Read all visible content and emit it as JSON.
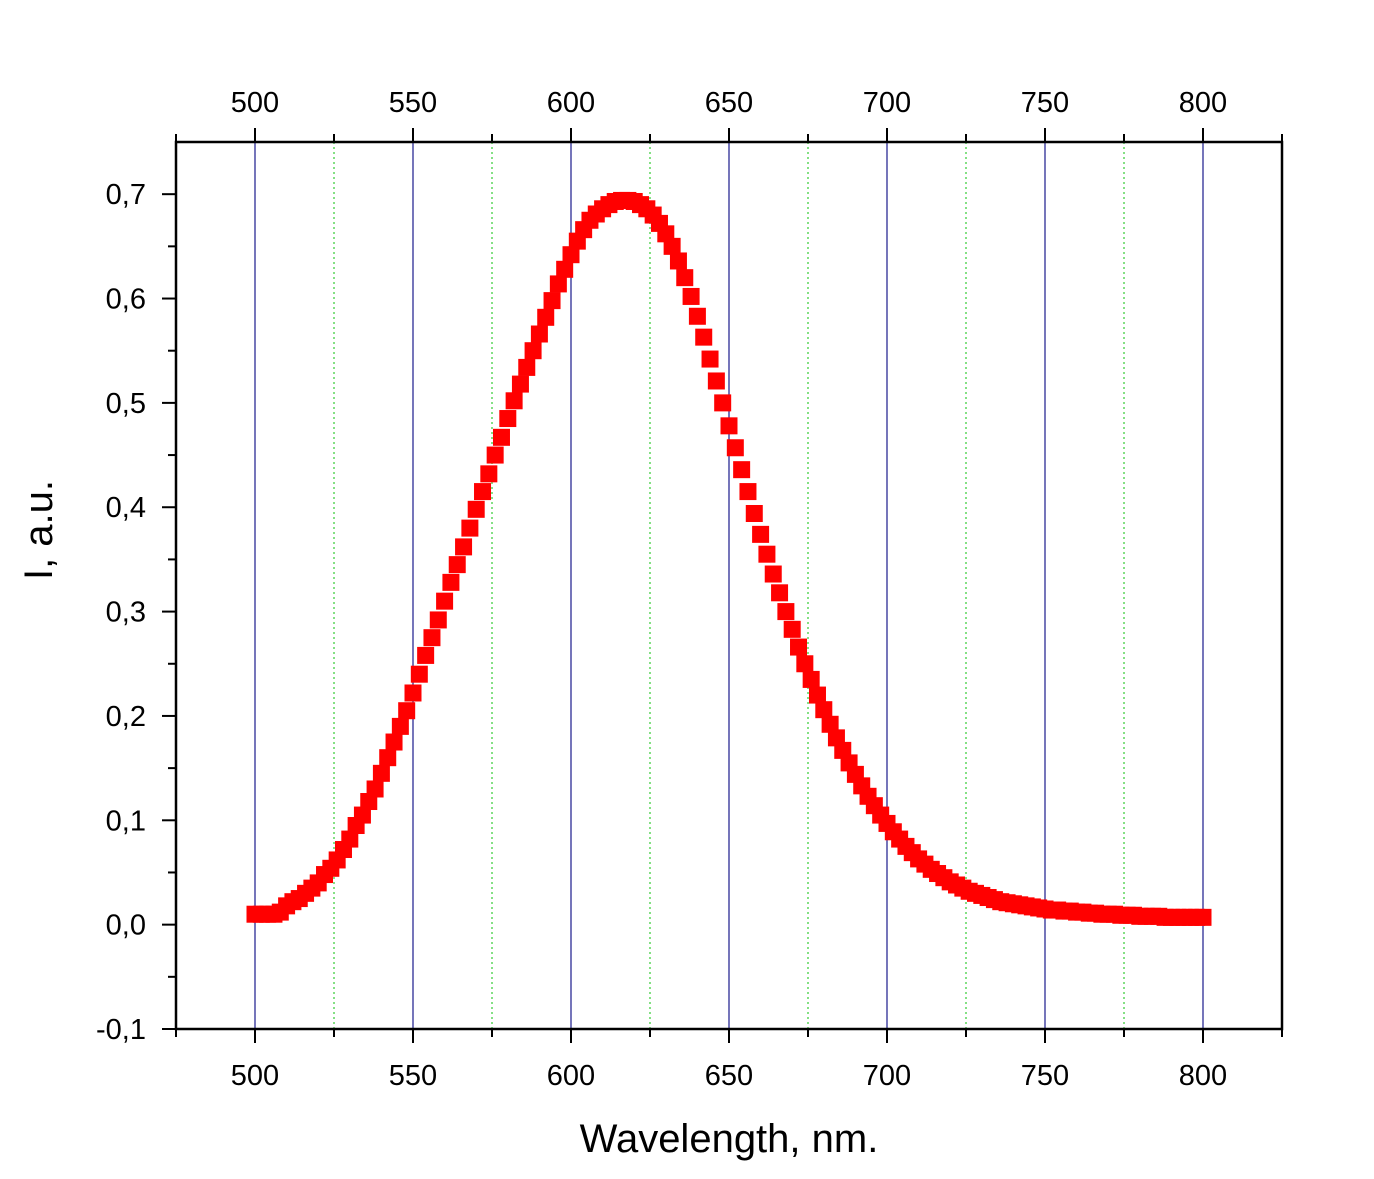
{
  "chart_data": {
    "type": "scatter",
    "title": "",
    "xlabel": "Wavelength, nm.",
    "ylabel": "I, a.u.",
    "xlim": [
      475,
      825
    ],
    "ylim": [
      -0.1,
      0.75
    ],
    "x_ticks": [
      500,
      550,
      600,
      650,
      700,
      750,
      800
    ],
    "x_tick_labels": [
      "500",
      "550",
      "600",
      "650",
      "700",
      "750",
      "800"
    ],
    "y_ticks": [
      -0.1,
      0.0,
      0.1,
      0.2,
      0.3,
      0.4,
      0.5,
      0.6,
      0.7
    ],
    "y_tick_labels": [
      "-0,1",
      "0,0",
      "0,1",
      "0,2",
      "0,3",
      "0,4",
      "0,5",
      "0,6",
      "0,7"
    ],
    "top_axis_mirrors_bottom": true,
    "grid": {
      "major_x": true,
      "minor_x": true,
      "major_y": false
    },
    "colors": {
      "marker": "#ff0000",
      "major_grid": "#1a1a8c",
      "minor_grid": "#33cc33",
      "axis": "#000000"
    },
    "marker": "square",
    "series": [
      {
        "x": [
          500,
          502,
          504,
          506,
          508,
          510,
          512,
          514,
          516,
          518,
          520,
          522,
          524,
          526,
          528,
          530,
          532,
          534,
          536,
          538,
          540,
          542,
          544,
          546,
          548,
          550,
          552,
          554,
          556,
          558,
          560,
          562,
          564,
          566,
          568,
          570,
          572,
          574,
          576,
          578,
          580,
          582,
          584,
          586,
          588,
          590,
          592,
          594,
          596,
          598,
          600,
          602,
          604,
          606,
          608,
          610,
          612,
          614,
          616,
          618,
          620,
          622,
          624,
          626,
          628,
          630,
          632,
          634,
          636,
          638,
          640,
          642,
          644,
          646,
          648,
          650,
          652,
          654,
          656,
          658,
          660,
          662,
          664,
          666,
          668,
          670,
          672,
          674,
          676,
          678,
          680,
          682,
          684,
          686,
          688,
          690,
          692,
          694,
          696,
          698,
          700,
          702,
          704,
          706,
          708,
          710,
          712,
          714,
          716,
          718,
          720,
          722,
          724,
          726,
          728,
          730,
          732,
          734,
          736,
          738,
          740,
          742,
          744,
          746,
          748,
          750,
          752,
          754,
          756,
          758,
          760,
          762,
          764,
          766,
          768,
          770,
          772,
          774,
          776,
          778,
          780,
          782,
          784,
          786,
          788,
          790,
          792,
          794,
          796,
          798,
          800
        ],
        "y": [
          0.01,
          0.01,
          0.01,
          0.01,
          0.012,
          0.018,
          0.022,
          0.025,
          0.03,
          0.035,
          0.04,
          0.048,
          0.054,
          0.062,
          0.072,
          0.082,
          0.095,
          0.105,
          0.118,
          0.13,
          0.145,
          0.16,
          0.175,
          0.19,
          0.205,
          0.222,
          0.24,
          0.258,
          0.275,
          0.292,
          0.31,
          0.328,
          0.345,
          0.362,
          0.38,
          0.398,
          0.415,
          0.432,
          0.45,
          0.467,
          0.485,
          0.502,
          0.518,
          0.534,
          0.55,
          0.566,
          0.582,
          0.598,
          0.614,
          0.628,
          0.642,
          0.655,
          0.666,
          0.675,
          0.681,
          0.686,
          0.69,
          0.693,
          0.694,
          0.694,
          0.693,
          0.69,
          0.686,
          0.68,
          0.672,
          0.662,
          0.65,
          0.636,
          0.62,
          0.602,
          0.583,
          0.563,
          0.542,
          0.521,
          0.5,
          0.478,
          0.457,
          0.436,
          0.415,
          0.394,
          0.374,
          0.355,
          0.336,
          0.318,
          0.3,
          0.283,
          0.266,
          0.25,
          0.235,
          0.22,
          0.206,
          0.192,
          0.179,
          0.167,
          0.155,
          0.144,
          0.133,
          0.123,
          0.114,
          0.105,
          0.097,
          0.089,
          0.082,
          0.075,
          0.069,
          0.063,
          0.058,
          0.053,
          0.049,
          0.045,
          0.041,
          0.038,
          0.035,
          0.032,
          0.03,
          0.028,
          0.026,
          0.024,
          0.022,
          0.021,
          0.02,
          0.019,
          0.018,
          0.017,
          0.016,
          0.015,
          0.014,
          0.014,
          0.013,
          0.013,
          0.012,
          0.012,
          0.011,
          0.011,
          0.01,
          0.01,
          0.01,
          0.009,
          0.009,
          0.009,
          0.008,
          0.008,
          0.008,
          0.008,
          0.007,
          0.007,
          0.007,
          0.007,
          0.007,
          0.007,
          0.007
        ]
      }
    ]
  }
}
